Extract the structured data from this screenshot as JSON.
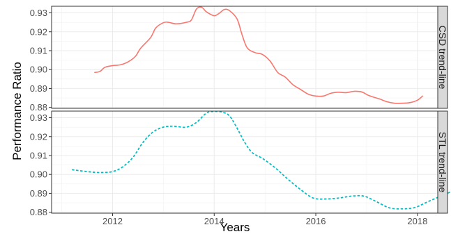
{
  "chart_data": {
    "type": "line",
    "xlabel": "Years",
    "ylabel": "Performance Ratio",
    "xlim": [
      2010.8,
      2018.4
    ],
    "x_ticks": [
      2012,
      2014,
      2016,
      2018
    ],
    "x_tick_labels": [
      "2012",
      "2014",
      "2016",
      "2018"
    ],
    "grid": true,
    "colors": {
      "csd": "#f8766d",
      "stl": "#00bfc4",
      "strip_bg": "#d9d9d9",
      "grid": "#ebebeb"
    },
    "panels": [
      {
        "strip_label": "CSD trend-line",
        "line_style": "solid",
        "ylim": [
          0.8795,
          0.9335
        ],
        "y_ticks": [
          0.88,
          0.89,
          0.9,
          0.91,
          0.92,
          0.93
        ],
        "y_tick_labels": [
          "0.88",
          "0.89",
          "0.90",
          "0.91",
          "0.92",
          "0.93"
        ],
        "points": [
          [
            2011.65,
            0.8985
          ],
          [
            2011.75,
            0.899
          ],
          [
            2011.85,
            0.9012
          ],
          [
            2012.0,
            0.9021
          ],
          [
            2012.15,
            0.9025
          ],
          [
            2012.3,
            0.904
          ],
          [
            2012.45,
            0.907
          ],
          [
            2012.55,
            0.9112
          ],
          [
            2012.75,
            0.917
          ],
          [
            2012.85,
            0.922
          ],
          [
            2013.0,
            0.9248
          ],
          [
            2013.1,
            0.925
          ],
          [
            2013.25,
            0.9242
          ],
          [
            2013.45,
            0.925
          ],
          [
            2013.55,
            0.9262
          ],
          [
            2013.65,
            0.932
          ],
          [
            2013.75,
            0.933
          ],
          [
            2013.85,
            0.9305
          ],
          [
            2014.0,
            0.9285
          ],
          [
            2014.1,
            0.9298
          ],
          [
            2014.2,
            0.9318
          ],
          [
            2014.3,
            0.9312
          ],
          [
            2014.45,
            0.9268
          ],
          [
            2014.55,
            0.9183
          ],
          [
            2014.65,
            0.9115
          ],
          [
            2014.8,
            0.909
          ],
          [
            2014.95,
            0.908
          ],
          [
            2015.1,
            0.9045
          ],
          [
            2015.25,
            0.8985
          ],
          [
            2015.4,
            0.896
          ],
          [
            2015.55,
            0.892
          ],
          [
            2015.7,
            0.8895
          ],
          [
            2015.85,
            0.887
          ],
          [
            2016.0,
            0.886
          ],
          [
            2016.15,
            0.886
          ],
          [
            2016.3,
            0.8875
          ],
          [
            2016.45,
            0.888
          ],
          [
            2016.6,
            0.8878
          ],
          [
            2016.75,
            0.8885
          ],
          [
            2016.9,
            0.8882
          ],
          [
            2017.05,
            0.8862
          ],
          [
            2017.25,
            0.8845
          ],
          [
            2017.4,
            0.883
          ],
          [
            2017.55,
            0.8822
          ],
          [
            2017.7,
            0.8822
          ],
          [
            2017.85,
            0.8825
          ],
          [
            2018.0,
            0.8838
          ],
          [
            2018.1,
            0.886
          ]
        ]
      },
      {
        "strip_label": "STL trend-line",
        "line_style": "dashed",
        "ylim": [
          0.8795,
          0.9335
        ],
        "y_ticks": [
          0.88,
          0.89,
          0.9,
          0.91,
          0.92,
          0.93
        ],
        "y_tick_labels": [
          "0.88",
          "0.89",
          "0.90",
          "0.91",
          "0.92",
          "0.93"
        ],
        "points": [
          [
            2011.2,
            0.9025
          ],
          [
            2011.5,
            0.9015
          ],
          [
            2011.75,
            0.901
          ],
          [
            2012.0,
            0.9015
          ],
          [
            2012.2,
            0.904
          ],
          [
            2012.4,
            0.909
          ],
          [
            2012.6,
            0.917
          ],
          [
            2012.8,
            0.9225
          ],
          [
            2013.0,
            0.925
          ],
          [
            2013.2,
            0.9255
          ],
          [
            2013.45,
            0.925
          ],
          [
            2013.65,
            0.9275
          ],
          [
            2013.85,
            0.9325
          ],
          [
            2014.0,
            0.9333
          ],
          [
            2014.15,
            0.933
          ],
          [
            2014.3,
            0.931
          ],
          [
            2014.45,
            0.9245
          ],
          [
            2014.6,
            0.917
          ],
          [
            2014.75,
            0.9115
          ],
          [
            2014.95,
            0.9085
          ],
          [
            2015.2,
            0.9035
          ],
          [
            2015.45,
            0.8975
          ],
          [
            2015.7,
            0.892
          ],
          [
            2015.95,
            0.8875
          ],
          [
            2016.2,
            0.887
          ],
          [
            2016.45,
            0.8875
          ],
          [
            2016.7,
            0.8885
          ],
          [
            2016.95,
            0.8885
          ],
          [
            2017.2,
            0.8855
          ],
          [
            2017.45,
            0.8823
          ],
          [
            2017.7,
            0.8818
          ],
          [
            2017.95,
            0.8825
          ],
          [
            2018.2,
            0.8855
          ],
          [
            2018.5,
            0.889
          ],
          [
            2018.75,
            0.8918
          ]
        ]
      }
    ]
  }
}
